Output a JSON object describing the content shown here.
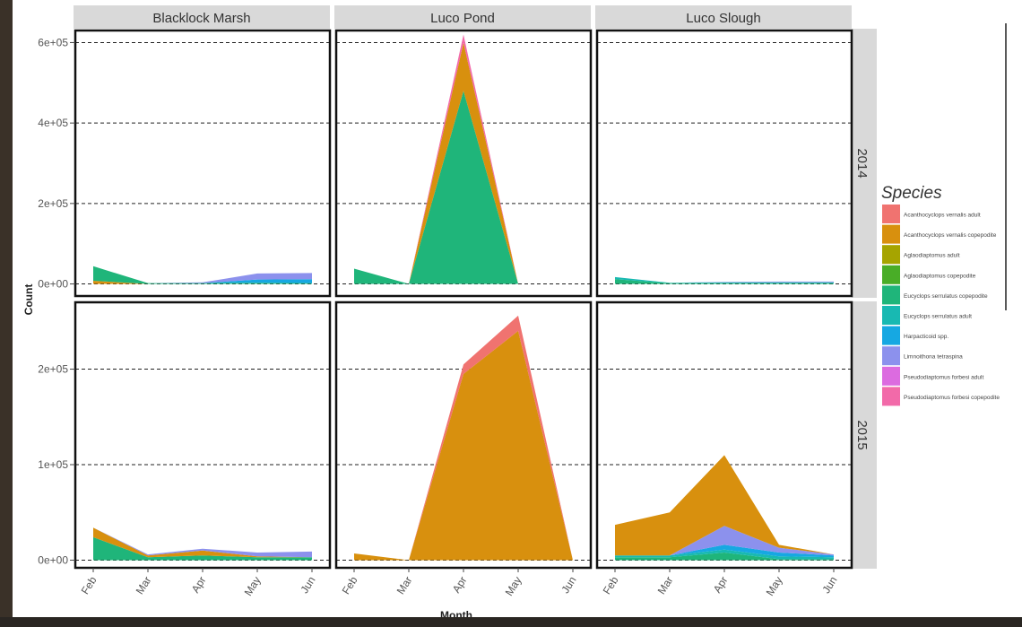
{
  "chart_data": {
    "type": "area",
    "stacked": true,
    "facet_columns": [
      "Blacklock Marsh",
      "Luco Pond",
      "Luco Slough"
    ],
    "facet_rows": [
      "2014",
      "2015"
    ],
    "xlabel": "Month",
    "ylabel": "Count",
    "x": [
      "Feb",
      "Mar",
      "Apr",
      "May",
      "Jun"
    ],
    "y_ticks": {
      "2014": [
        "0e+00",
        "2e+05",
        "4e+05",
        "6e+05"
      ],
      "2015": [
        "0e+00",
        "1e+05",
        "2e+05"
      ]
    },
    "ylim": {
      "2014": [
        -30000,
        630000
      ],
      "2015": [
        -8000,
        270000
      ]
    },
    "grid": "dashed horizontal",
    "legend": {
      "title": "Species",
      "placement": "right"
    },
    "species": [
      {
        "name": "Acanthocyclops vernalis adult",
        "color": "#f07370"
      },
      {
        "name": "Acanthocyclops vernalis copepodite",
        "color": "#d8900e"
      },
      {
        "name": "Aglaodiaptomus adult",
        "color": "#a6a400"
      },
      {
        "name": "Aglaodiaptomus copepodite",
        "color": "#49ad27"
      },
      {
        "name": "Eucyclops serrulatus copepodite",
        "color": "#1fb57a"
      },
      {
        "name": "Eucyclops serrulatus adult",
        "color": "#18b9b2"
      },
      {
        "name": "Harpacticoid spp.",
        "color": "#16a8e2"
      },
      {
        "name": "Limnoithona tetraspina",
        "color": "#8c91ed"
      },
      {
        "name": "Pseudodiaptomus forbesi adult",
        "color": "#dc6be0"
      },
      {
        "name": "Pseudodiaptomus forbesi copepodite",
        "color": "#f26aa9"
      }
    ],
    "panels": [
      {
        "facet": "Blacklock Marsh",
        "year": "2014",
        "series": [
          {
            "name": "Acanthocyclops vernalis copepodite",
            "values": [
              8000,
              0,
              0,
              0,
              0
            ]
          },
          {
            "name": "Eucyclops serrulatus copepodite",
            "values": [
              36000,
              2000,
              2000,
              3000,
              2000
            ]
          },
          {
            "name": "Harpacticoid spp.",
            "values": [
              0,
              0,
              0,
              8000,
              10000
            ]
          },
          {
            "name": "Limnoithona tetraspina",
            "values": [
              0,
              0,
              2000,
              15000,
              15000
            ]
          }
        ]
      },
      {
        "facet": "Luco Pond",
        "year": "2014",
        "series": [
          {
            "name": "Eucyclops serrulatus copepodite",
            "values": [
              38000,
              0,
              480000,
              0,
              null
            ]
          },
          {
            "name": "Acanthocyclops vernalis copepodite",
            "values": [
              0,
              0,
              120000,
              0,
              null
            ]
          },
          {
            "name": "Pseudodiaptomus forbesi copepodite",
            "values": [
              0,
              0,
              20000,
              0,
              null
            ]
          }
        ]
      },
      {
        "facet": "Luco Slough",
        "year": "2014",
        "series": [
          {
            "name": "Eucyclops serrulatus copepodite",
            "values": [
              12000,
              2000,
              2000,
              2000,
              2000
            ]
          },
          {
            "name": "Eucyclops serrulatus adult",
            "values": [
              5000,
              1000,
              2000,
              2000,
              2000
            ]
          },
          {
            "name": "Limnoithona tetraspina",
            "values": [
              0,
              0,
              1000,
              2000,
              2000
            ]
          }
        ]
      },
      {
        "facet": "Blacklock Marsh",
        "year": "2015",
        "series": [
          {
            "name": "Eucyclops serrulatus copepodite",
            "values": [
              24000,
              3000,
              5000,
              3000,
              3000
            ]
          },
          {
            "name": "Acanthocyclops vernalis copepodite",
            "values": [
              10000,
              2000,
              5000,
              1000,
              0
            ]
          },
          {
            "name": "Limnoithona tetraspina",
            "values": [
              0,
              1000,
              2000,
              4000,
              6000
            ]
          }
        ]
      },
      {
        "facet": "Luco Pond",
        "year": "2015",
        "series": [
          {
            "name": "Acanthocyclops vernalis copepodite",
            "values": [
              7000,
              0,
              195000,
              240000,
              0
            ]
          },
          {
            "name": "Acanthocyclops vernalis adult",
            "values": [
              0,
              0,
              10000,
              16000,
              0
            ]
          }
        ]
      },
      {
        "facet": "Luco Slough",
        "year": "2015",
        "series": [
          {
            "name": "Eucyclops serrulatus copepodite",
            "values": [
              3000,
              3000,
              8000,
              1000,
              1000
            ]
          },
          {
            "name": "Eucyclops serrulatus adult",
            "values": [
              2000,
              2000,
              3000,
              3000,
              2000
            ]
          },
          {
            "name": "Harpacticoid spp.",
            "values": [
              0,
              0,
              5000,
              4000,
              2000
            ]
          },
          {
            "name": "Limnoithona tetraspina",
            "values": [
              0,
              0,
              20000,
              5000,
              1000
            ]
          },
          {
            "name": "Acanthocyclops vernalis copepodite",
            "values": [
              32000,
              45000,
              74000,
              3000,
              0
            ]
          }
        ]
      }
    ]
  }
}
